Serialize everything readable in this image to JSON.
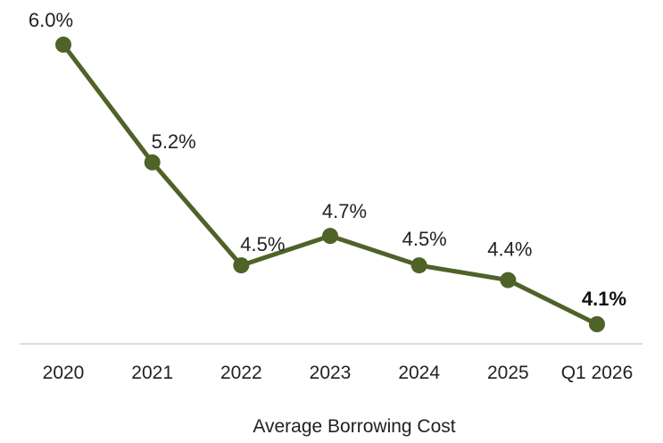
{
  "chart_data": {
    "type": "line",
    "title": "",
    "xlabel": "Average Borrowing Cost",
    "ylabel": "",
    "categories": [
      "2020",
      "2021",
      "2022",
      "2023",
      "2024",
      "2025",
      "Q1 2026"
    ],
    "series": [
      {
        "values": [
          6.0,
          5.2,
          4.5,
          4.7,
          4.5,
          4.4,
          4.1
        ],
        "labels": [
          "6.0%",
          "5.2%",
          "4.5%",
          "4.7%",
          "4.5%",
          "4.4%",
          "4.1%"
        ],
        "emphasized_index": 6,
        "color": "#4f6228"
      }
    ],
    "ylim": [
      3.95,
      6.1
    ],
    "grid": false,
    "legend": "none",
    "axis_color": "#d0d0d0"
  }
}
